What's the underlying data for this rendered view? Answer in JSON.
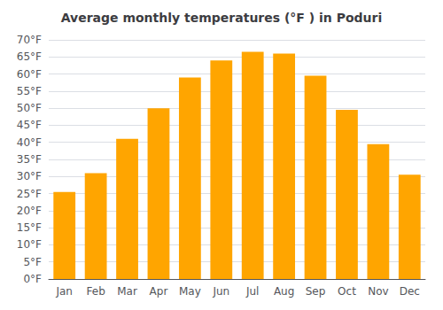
{
  "chart_data": {
    "type": "bar",
    "title": "Average monthly temperatures (°F ) in Poduri",
    "categories": [
      "Jan",
      "Feb",
      "Mar",
      "Apr",
      "May",
      "Jun",
      "Jul",
      "Aug",
      "Sep",
      "Oct",
      "Nov",
      "Dec"
    ],
    "values": [
      25.5,
      31.0,
      41.0,
      50.0,
      59.0,
      64.0,
      66.5,
      66.0,
      59.5,
      49.5,
      39.5,
      30.5
    ],
    "color": "#FFA500",
    "ylim": [
      0,
      70
    ],
    "yticks": [
      {
        "value": 0,
        "label": "0°F"
      },
      {
        "value": 5,
        "label": "5°F"
      },
      {
        "value": 10,
        "label": "10°F"
      },
      {
        "value": 15,
        "label": "15°F"
      },
      {
        "value": 20,
        "label": "20°F"
      },
      {
        "value": 25,
        "label": "25°F"
      },
      {
        "value": 30,
        "label": "30°F"
      },
      {
        "value": 35,
        "label": "35°F"
      },
      {
        "value": 40,
        "label": "40°F"
      },
      {
        "value": 45,
        "label": "45°F"
      },
      {
        "value": 50,
        "label": "50°F"
      },
      {
        "value": 55,
        "label": "55°F"
      },
      {
        "value": 60,
        "label": "60°F"
      },
      {
        "value": 65,
        "label": "65°F"
      },
      {
        "value": 70,
        "label": "70°F"
      }
    ],
    "grid": true
  }
}
